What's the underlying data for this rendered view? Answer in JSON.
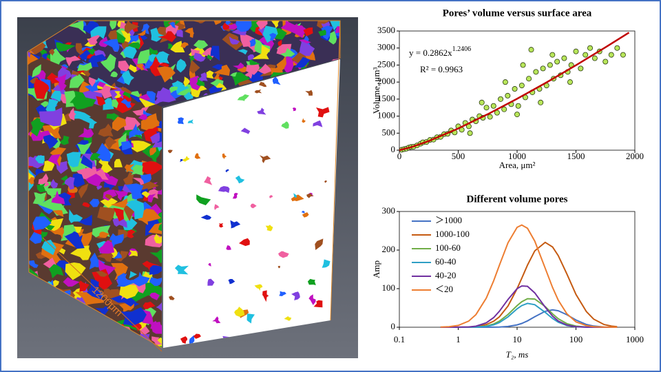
{
  "image": {
    "scale_label": "1200μm"
  },
  "chart_data": [
    {
      "type": "scatter",
      "title": "Pores’ volume versus surface area",
      "x_label": "Area, μm²",
      "y_label": "Volume, μm³",
      "equation_base": "y = 0.2862x",
      "equation_exponent": "1.2406",
      "r_squared": "R² = 0.9963",
      "xlim": [
        0,
        2000
      ],
      "xticks": [
        0,
        500,
        1000,
        1500,
        2000
      ],
      "ylim": [
        0,
        3500
      ],
      "yticks": [
        0,
        500,
        1000,
        1500,
        2000,
        2500,
        3000,
        3500
      ],
      "series": [
        {
          "color": "#b8e65a",
          "x": [
            20,
            40,
            60,
            80,
            100,
            120,
            150,
            180,
            200,
            230,
            260,
            290,
            320,
            350,
            380,
            410,
            440,
            470,
            500,
            530,
            560,
            590,
            620,
            650,
            680,
            710,
            740,
            770,
            800,
            830,
            860,
            890,
            920,
            950,
            980,
            1010,
            1040,
            1070,
            1100,
            1130,
            1160,
            1190,
            1220,
            1250,
            1280,
            1310,
            1340,
            1370,
            1400,
            1430,
            1460,
            1500,
            1540,
            1580,
            1620,
            1660,
            1700,
            1750,
            1800,
            1850,
            1900,
            1050,
            1120,
            900,
            1000,
            1200,
            700,
            600,
            1300,
            1450
          ],
          "values": [
            12,
            30,
            45,
            75,
            95,
            100,
            140,
            190,
            230,
            240,
            300,
            310,
            380,
            390,
            470,
            480,
            580,
            520,
            700,
            600,
            800,
            700,
            900,
            850,
            1000,
            950,
            1250,
            980,
            1300,
            1100,
            1500,
            1200,
            1600,
            1350,
            1800,
            1300,
            1900,
            1550,
            2100,
            1700,
            2300,
            1800,
            2400,
            1900,
            2500,
            2100,
            2600,
            2200,
            2700,
            2300,
            2500,
            2900,
            2400,
            2800,
            3000,
            2700,
            2900,
            2600,
            2800,
            3000,
            2800,
            2500,
            2950,
            2000,
            1050,
            1400,
            1400,
            500,
            2800,
            2000
          ]
        }
      ],
      "fit": {
        "color": "#c00000",
        "x": [
          0,
          100,
          250,
          500,
          750,
          1000,
          1250,
          1500,
          1750,
          1950
        ],
        "values": [
          0,
          87,
          270,
          638,
          1056,
          1509,
          1991,
          2495,
          3020,
          3454
        ]
      }
    },
    {
      "type": "line",
      "title": "Different volume pores",
      "x_label": "T₂, ms",
      "y_label": "Amp",
      "xscale": "log",
      "legend": "top-left",
      "xlim": [
        0.1,
        1000
      ],
      "xticks": [
        0.1,
        1,
        10,
        100,
        1000
      ],
      "ylim": [
        0,
        300
      ],
      "yticks": [
        0,
        100,
        200,
        300
      ],
      "x": [
        0.5,
        0.7,
        1,
        1.5,
        2,
        3,
        4,
        5,
        7,
        10,
        12,
        15,
        20,
        30,
        40,
        50,
        70,
        100,
        150,
        200,
        300,
        400,
        500
      ],
      "series": [
        {
          "name": "＞1000",
          "color": "#4472c4",
          "values": [
            0,
            0,
            0,
            0,
            0,
            0,
            0.2,
            0.5,
            1.9,
            6,
            9.8,
            16.4,
            27.2,
            41.3,
            45,
            42.7,
            32.4,
            18.7,
            7.2,
            3,
            0.6,
            0.2,
            0
          ]
        },
        {
          "name": "1000-100",
          "color": "#c55a11",
          "values": [
            0,
            0,
            0.1,
            0.6,
            1.8,
            6.9,
            15.5,
            27,
            55,
            100,
            127,
            161,
            198,
            220,
            208,
            185.5,
            138,
            85,
            40.5,
            21,
            6.9,
            2.8,
            1.3
          ]
        },
        {
          "name": "100-60",
          "color": "#70ad47",
          "values": [
            0,
            0,
            0,
            0.2,
            0.6,
            3.2,
            8.4,
            15.7,
            33,
            56,
            66,
            74,
            73,
            53.5,
            34.7,
            22,
            9.2,
            2.8,
            0.5,
            0.1,
            0,
            0,
            0
          ]
        },
        {
          "name": "60-40",
          "color": "#2e9fc4",
          "values": [
            0,
            0,
            0,
            0.1,
            0.3,
            2.1,
            6.2,
            12.2,
            27,
            47.6,
            56,
            61.7,
            58.4,
            38.6,
            22.6,
            13,
            4.5,
            1.1,
            0.1,
            0,
            0,
            0,
            0
          ]
        },
        {
          "name": "40-20",
          "color": "#7030a0",
          "values": [
            0,
            0,
            0.1,
            0.8,
            2.7,
            11.4,
            25,
            41.5,
            72,
            100,
            107,
            106,
            89,
            52,
            28.7,
            16,
            5.5,
            1.4,
            0.2,
            0,
            0,
            0,
            0
          ]
        },
        {
          "name": "＜20",
          "color": "#ed7d31",
          "values": [
            0.4,
            1.4,
            4.7,
            15.8,
            32.6,
            75.5,
            120.5,
            160.8,
            219,
            259,
            265,
            256.5,
            223,
            153,
            103,
            70,
            34.8,
            14,
            4.1,
            1.5,
            0.3,
            0.1,
            0
          ]
        }
      ]
    }
  ]
}
